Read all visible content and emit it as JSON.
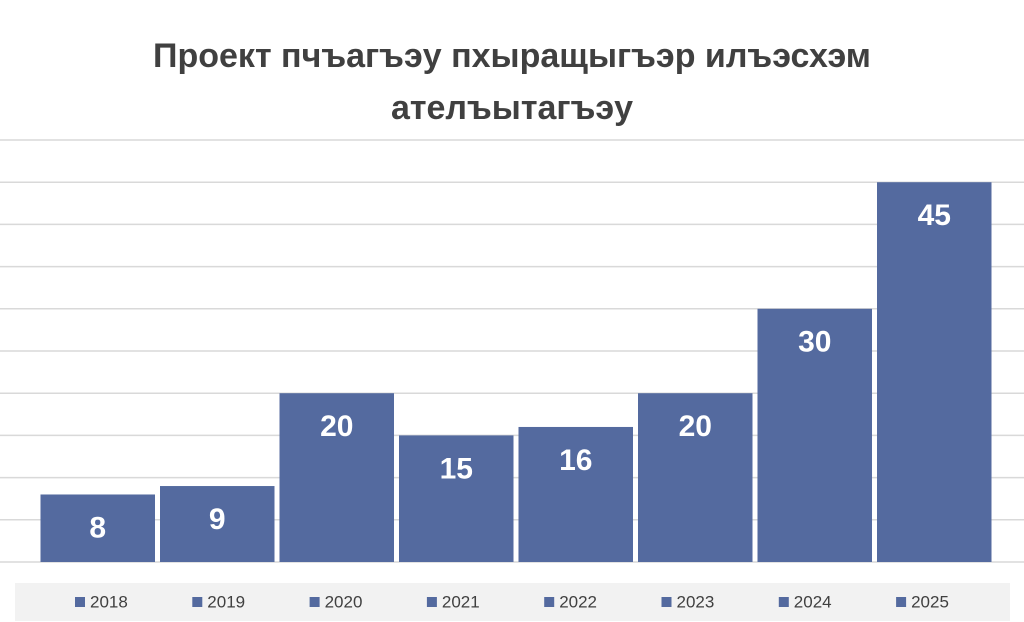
{
  "chart_data": {
    "type": "bar",
    "title": "Проект пчъагъэу пхыращыгъэр илъэсхэм ателъытагъэу",
    "categories": [
      "2018",
      "2019",
      "2020",
      "2021",
      "2022",
      "2023",
      "2024",
      "2025"
    ],
    "values": [
      8,
      9,
      20,
      15,
      16,
      20,
      30,
      45
    ],
    "color": "#546a9f",
    "ylim": [
      0,
      50
    ],
    "yticks": [
      0,
      5,
      10,
      15,
      20,
      25,
      30,
      35,
      40,
      45,
      50
    ],
    "grid": true,
    "legend": "bottom"
  }
}
